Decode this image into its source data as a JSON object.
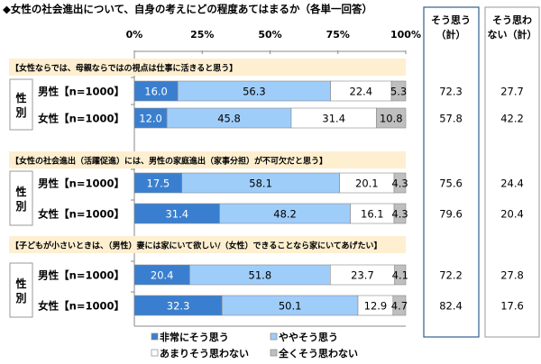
{
  "chart_data": {
    "type": "bar",
    "stacked": true,
    "orientation": "horizontal",
    "title": "◆女性の社会進出について、自身の考えにどの程度あてはまるか（各単一回答）",
    "xlim": [
      0,
      100
    ],
    "xticks": [
      "0%",
      "25%",
      "50%",
      "75%",
      "100%"
    ],
    "group_label": "性別",
    "summary_headers": [
      "そう思う（計）",
      "そう思わない（計）"
    ],
    "series": [
      {
        "name": "非常にそう思う",
        "color": "#3a7fcf"
      },
      {
        "name": "ややそう思う",
        "color": "#9fcdfa"
      },
      {
        "name": "あまりそう思わない",
        "color": "#ffffff"
      },
      {
        "name": "全くそう思わない",
        "color": "#bfbfbf"
      }
    ],
    "legend_position": "bottom",
    "groups": [
      {
        "question": "【女性ならでは、母親ならではの視点は仕事に活きると思う】",
        "rows": [
          {
            "label": "男性【n=1000】",
            "values": [
              16.0,
              56.3,
              22.4,
              5.3
            ],
            "agree": "72.3",
            "disagree": "27.7"
          },
          {
            "label": "女性【n=1000】",
            "values": [
              12.0,
              45.8,
              31.4,
              10.8
            ],
            "agree": "57.8",
            "disagree": "42.2"
          }
        ]
      },
      {
        "question": "【女性の社会進出（活躍促進）には、男性の家庭進出（家事分担）が不可欠だと思う】",
        "rows": [
          {
            "label": "男性【n=1000】",
            "values": [
              17.5,
              58.1,
              20.1,
              4.3
            ],
            "agree": "75.6",
            "disagree": "24.4"
          },
          {
            "label": "女性【n=1000】",
            "values": [
              31.4,
              48.2,
              16.1,
              4.3
            ],
            "agree": "79.6",
            "disagree": "20.4"
          }
        ]
      },
      {
        "question": "【子どもが小さいときは、（男性）妻には家にいて欲しい/（女性）できることなら家にいてあげたい】",
        "rows": [
          {
            "label": "男性【n=1000】",
            "values": [
              20.4,
              51.8,
              23.7,
              4.1
            ],
            "agree": "72.2",
            "disagree": "27.8"
          },
          {
            "label": "女性【n=1000】",
            "values": [
              32.3,
              50.1,
              12.9,
              4.7
            ],
            "agree": "82.4",
            "disagree": "17.6"
          }
        ]
      }
    ]
  }
}
